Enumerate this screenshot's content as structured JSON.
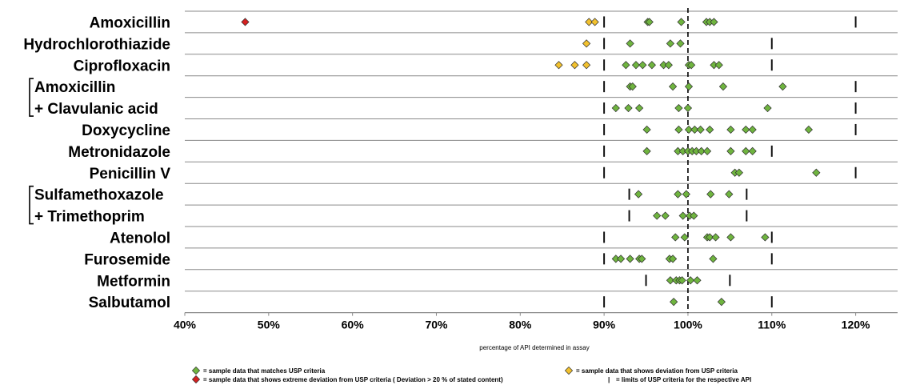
{
  "chart_data": {
    "type": "scatter",
    "xlabel": "percentage of API determined in assay",
    "xlim": [
      40,
      125
    ],
    "x_ticks": [
      40,
      50,
      60,
      70,
      80,
      90,
      100,
      110,
      120
    ],
    "x_tick_labels": [
      "40%",
      "50%",
      "60%",
      "70%",
      "80%",
      "90%",
      "100%",
      "110%",
      "120%"
    ],
    "reference_line": 100,
    "colors": {
      "match": "#6fb43f",
      "deviation": "#f2c12e",
      "extreme": "#d42020"
    },
    "rows": [
      {
        "label": [
          "Amoxicillin"
        ],
        "limits": [
          90,
          120
        ],
        "green": [
          95.2,
          95.4,
          99.2,
          102.2,
          102.6,
          103.1
        ],
        "yellow": [
          88.2,
          88.9
        ],
        "red": [
          47.2
        ]
      },
      {
        "label": [
          "Hydrochlorothiazide"
        ],
        "limits": [
          90,
          110
        ],
        "green": [
          93.1,
          97.9,
          99.1
        ],
        "yellow": [
          87.9
        ],
        "red": []
      },
      {
        "label": [
          "Ciprofloxacin"
        ],
        "limits": [
          90,
          110
        ],
        "green": [
          92.6,
          93.8,
          94.6,
          95.7,
          97.1,
          97.7,
          100.1,
          100.4,
          103.1,
          103.7
        ],
        "yellow": [
          84.6,
          86.5,
          87.9
        ],
        "red": []
      },
      {
        "label": [
          "Amoxicillin",
          "+ Clavulanic acid"
        ],
        "bracket": true,
        "limits": [
          90,
          120
        ],
        "sub_rows": [
          {
            "green": [
              93.1,
              93.4,
              98.2,
              100.1,
              104.2,
              111.3
            ],
            "yellow": [],
            "red": []
          },
          {
            "green": [
              91.4,
              92.9,
              94.2,
              98.9,
              100.0,
              109.5
            ],
            "yellow": [],
            "red": []
          }
        ]
      },
      {
        "label": [
          "Doxycycline"
        ],
        "limits": [
          90,
          120
        ],
        "green": [
          95.1,
          98.9,
          100.1,
          100.8,
          101.5,
          102.6,
          105.1,
          106.9,
          107.7,
          114.4
        ],
        "yellow": [],
        "red": []
      },
      {
        "label": [
          "Metronidazole"
        ],
        "limits": [
          90,
          110
        ],
        "green": [
          95.1,
          98.8,
          99.4,
          100.0,
          100.5,
          101.0,
          101.6,
          102.3,
          105.1,
          106.9,
          107.7
        ],
        "yellow": [],
        "red": []
      },
      {
        "label": [
          "Penicillin V"
        ],
        "limits": [
          90,
          120
        ],
        "green": [
          105.6,
          106.1,
          115.3
        ],
        "yellow": [],
        "red": []
      },
      {
        "label": [
          "Sulfamethoxazole",
          "+ Trimethoprim"
        ],
        "bracket": true,
        "limits": [
          93,
          107
        ],
        "sub_rows": [
          {
            "green": [
              94.1,
              98.8,
              99.8,
              102.7,
              104.9
            ],
            "yellow": [],
            "red": []
          },
          {
            "green": [
              96.3,
              97.3,
              99.4,
              100.2,
              100.7
            ],
            "yellow": [],
            "red": []
          }
        ]
      },
      {
        "label": [
          "Atenolol"
        ],
        "limits": [
          90,
          110
        ],
        "green": [
          98.5,
          99.6,
          102.3,
          102.6,
          103.3,
          105.1,
          109.2
        ],
        "yellow": [],
        "red": []
      },
      {
        "label": [
          "Furosemide"
        ],
        "limits": [
          90,
          110
        ],
        "green": [
          91.4,
          92.0,
          93.1,
          94.2,
          94.5,
          97.8,
          98.2,
          103.0
        ],
        "yellow": [],
        "red": []
      },
      {
        "label": [
          "Metformin"
        ],
        "limits": [
          95,
          105
        ],
        "green": [
          97.9,
          98.6,
          99.0,
          99.3,
          100.3,
          101.1
        ],
        "yellow": [],
        "red": []
      },
      {
        "label": [
          "Salbutamol"
        ],
        "limits": [
          90,
          110
        ],
        "green": [
          98.3,
          104.0
        ],
        "yellow": [],
        "red": []
      }
    ],
    "legend": {
      "green": "= sample data that matches USP criteria",
      "yellow": "= sample data that shows deviation from USP criteria",
      "red": "= sample data that shows extreme deviation from USP criteria ( Deviation > 20 % of stated content)",
      "limit": "= limits of USP criteria for the respective API",
      "limit_glyph": "|"
    }
  }
}
